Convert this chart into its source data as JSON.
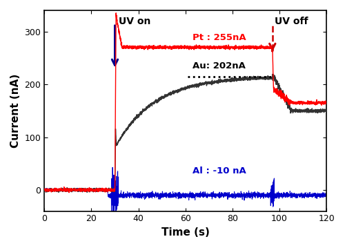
{
  "xlabel": "Time (s)",
  "ylabel": "Current (nA)",
  "xlim": [
    0,
    120
  ],
  "ylim": [
    -40,
    340
  ],
  "yticks": [
    0,
    100,
    200,
    300
  ],
  "xticks": [
    0,
    20,
    40,
    60,
    80,
    100,
    120
  ],
  "uv_on_time": 30,
  "uv_off_time": 97,
  "pt_plateau": 270,
  "au_plateau": 215,
  "pt_label": "Pt : 255nA",
  "au_label": "Au: 202nA",
  "al_label": "Al : -10 nA",
  "uv_on_label": "UV on",
  "uv_off_label": "UV off",
  "color_pt": "#FF0000",
  "color_au": "#333333",
  "color_al": "#0000CC",
  "bg": "#ffffff"
}
